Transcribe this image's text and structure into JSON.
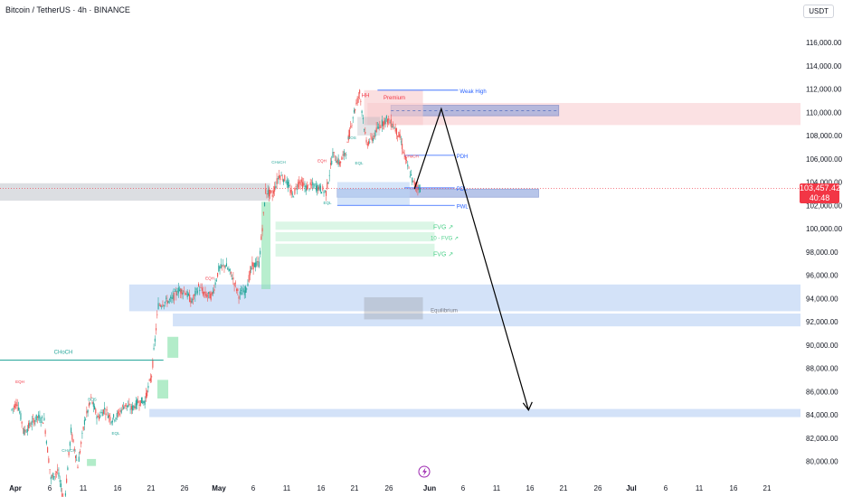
{
  "header": {
    "title": "Bitcoin / TetherUS · 4h · BINANCE",
    "currency": "USDT"
  },
  "price_tag": {
    "price": "103,457.42",
    "countdown": "40:48"
  },
  "colors": {
    "up": "#26a69a",
    "down": "#ef5350",
    "zone_blue": "#bbd3f5",
    "zone_red": "#f8c9cc",
    "zone_green": "#7ee0a5",
    "price_red": "#f23645"
  },
  "chart_data": {
    "type": "candlestick",
    "title": "Bitcoin / TetherUS · 4h · BINANCE",
    "ylim": [
      79000,
      118000
    ],
    "yticks": [
      "116,000.00",
      "114,000.00",
      "112,000.00",
      "110,000.00",
      "108,000.00",
      "106,000.00",
      "104,000.00",
      "102,000.00",
      "100,000.00",
      "98,000.00",
      "96,000.00",
      "94,000.00",
      "92,000.00",
      "90,000.00",
      "88,000.00",
      "86,000.00",
      "84,000.00",
      "82,000.00",
      "80,000.00"
    ],
    "ytick_values": [
      116000,
      114000,
      112000,
      110000,
      108000,
      106000,
      104000,
      102000,
      100000,
      98000,
      96000,
      94000,
      92000,
      90000,
      88000,
      86000,
      84000,
      82000,
      80000
    ],
    "xticks": [
      "Apr",
      "6",
      "11",
      "16",
      "21",
      "26",
      "May",
      "6",
      "11",
      "16",
      "21",
      "26",
      "Jun",
      "6",
      "11",
      "16",
      "21",
      "26",
      "Jul",
      "6",
      "11",
      "16",
      "21"
    ],
    "current_price": 103457.42,
    "daily_closes": [
      [
        "Apr 1",
        85100
      ],
      [
        "Apr 2",
        82500
      ],
      [
        "Apr 3",
        83200
      ],
      [
        "Apr 4",
        83800
      ],
      [
        "Apr 5",
        83500
      ],
      [
        "Apr 6",
        78500
      ],
      [
        "Apr 7",
        79200
      ],
      [
        "Apr 8",
        76300
      ],
      [
        "Apr 9",
        82600
      ],
      [
        "Apr 10",
        79600
      ],
      [
        "Apr 11",
        83400
      ],
      [
        "Apr 12",
        85300
      ],
      [
        "Apr 13",
        83700
      ],
      [
        "Apr 14",
        84500
      ],
      [
        "Apr 15",
        83600
      ],
      [
        "Apr 16",
        84000
      ],
      [
        "Apr 17",
        84900
      ],
      [
        "Apr 18",
        84500
      ],
      [
        "Apr 19",
        85100
      ],
      [
        "Apr 20",
        85200
      ],
      [
        "Apr 21",
        87400
      ],
      [
        "Apr 22",
        93400
      ],
      [
        "Apr 23",
        93700
      ],
      [
        "Apr 24",
        93900
      ],
      [
        "Apr 25",
        94700
      ],
      [
        "Apr 26",
        94600
      ],
      [
        "Apr 27",
        93700
      ],
      [
        "Apr 28",
        95000
      ],
      [
        "Apr 29",
        94300
      ],
      [
        "Apr 30",
        94200
      ],
      [
        "May 1",
        96500
      ],
      [
        "May 2",
        96900
      ],
      [
        "May 3",
        95900
      ],
      [
        "May 4",
        94300
      ],
      [
        "May 5",
        94700
      ],
      [
        "May 6",
        96800
      ],
      [
        "May 7",
        97000
      ],
      [
        "May 8",
        103200
      ],
      [
        "May 9",
        102900
      ],
      [
        "May 10",
        104600
      ],
      [
        "May 11",
        104200
      ],
      [
        "May 12",
        102800
      ],
      [
        "May 13",
        104100
      ],
      [
        "May 14",
        103500
      ],
      [
        "May 15",
        103700
      ],
      [
        "May 16",
        103500
      ],
      [
        "May 17",
        103100
      ],
      [
        "May 18",
        106400
      ],
      [
        "May 19",
        105600
      ],
      [
        "May 20",
        106700
      ],
      [
        "May 21",
        109700
      ],
      [
        "May 22",
        111700
      ],
      [
        "May 23",
        107300
      ],
      [
        "May 24",
        107800
      ],
      [
        "May 25",
        108900
      ],
      [
        "May 26",
        109400
      ],
      [
        "May 27",
        108900
      ],
      [
        "May 28",
        107800
      ],
      [
        "May 29",
        105600
      ],
      [
        "May 30",
        103900
      ],
      [
        "May 31",
        103457
      ]
    ],
    "zones": [
      {
        "label": "Premium",
        "type": "premium",
        "from": 108900,
        "to": 110800
      },
      {
        "label": "Equilibrium",
        "type": "equilibrium",
        "from": 92900,
        "to": 95200
      },
      {
        "label": "",
        "type": "demand",
        "from": 91600,
        "to": 92700
      },
      {
        "label": "",
        "type": "target",
        "from": 83800,
        "to": 84500
      },
      {
        "label": "",
        "type": "order_block",
        "from": 109700,
        "to": 110600
      },
      {
        "label": "",
        "type": "order_block",
        "from": 102700,
        "to": 103400
      },
      {
        "label": "",
        "type": "gray",
        "from": 102400,
        "to": 103900
      }
    ],
    "levels": [
      {
        "label": "Weak High",
        "value": 111900
      },
      {
        "label": "PDH",
        "value": 106300
      },
      {
        "label": "PDL",
        "value": 103500
      },
      {
        "label": "PWL",
        "value": 102000
      }
    ],
    "fvg_labels": [
      "FVG ↗",
      "10 - FVG ↗",
      "FVG ↗"
    ],
    "annotations": [
      "CHoCH",
      "BOS",
      "EQH",
      "EQL",
      "HH",
      "Premium",
      "Weak High",
      "Equilibrium"
    ],
    "projection": [
      [
        "May 31",
        103400
      ],
      [
        "Jun 4",
        110300
      ],
      [
        "Jun 17",
        84400
      ]
    ]
  }
}
